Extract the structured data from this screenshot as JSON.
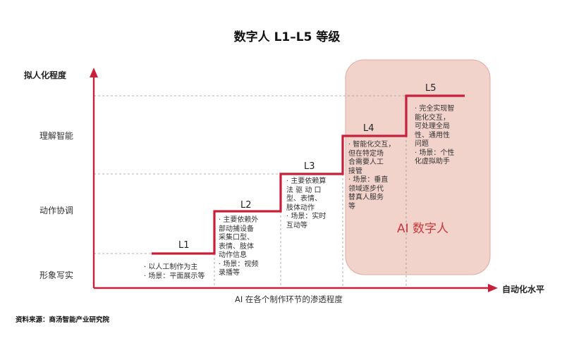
{
  "title": "数字人 L1–L5 等级",
  "y_axis_label": "拟人化程度",
  "x_axis_label": "自动化水平",
  "x_caption": "AI 在各个制作环节的渗透程度",
  "y_ticks": [
    "理解智能",
    "动作协调",
    "形象写实"
  ],
  "highlight_label": "AI 数字人",
  "levels": [
    {
      "name": "L1",
      "lines": [
        "· 以人工制作为主",
        "· 场景：平面展示等"
      ]
    },
    {
      "name": "L2",
      "lines": [
        "· 主要依赖外",
        "  部动捕设备",
        "  采集口型、",
        "  表情、肢体",
        "  动作信息",
        "· 场景：视频",
        "  录播等"
      ]
    },
    {
      "name": "L3",
      "lines": [
        "· 主要依赖算",
        "  法 驱 动 口",
        "  型、表情、",
        "  肢体动作",
        "· 场景：实时",
        "  互动等"
      ]
    },
    {
      "name": "L4",
      "lines": [
        "· 智能化交互，",
        "  但在特定场",
        "  合需要人工",
        "  接管",
        "· 场景：垂直",
        "  领域逐步代",
        "  替真人服务",
        "  等"
      ]
    },
    {
      "name": "L5",
      "lines": [
        "· 完全实现智",
        "  能化交互，",
        "  可处理全局",
        "  性、通用性",
        "  问题",
        "· 场景：个性",
        "  化虚拟助手"
      ]
    }
  ],
  "source": "资料来源：商汤智能产业研究院",
  "colors": {
    "accent": "#c8203a",
    "highlight_bg": "#f2d3cc",
    "highlight_border": "#e3a99e",
    "grid": "#9a9a9a"
  }
}
